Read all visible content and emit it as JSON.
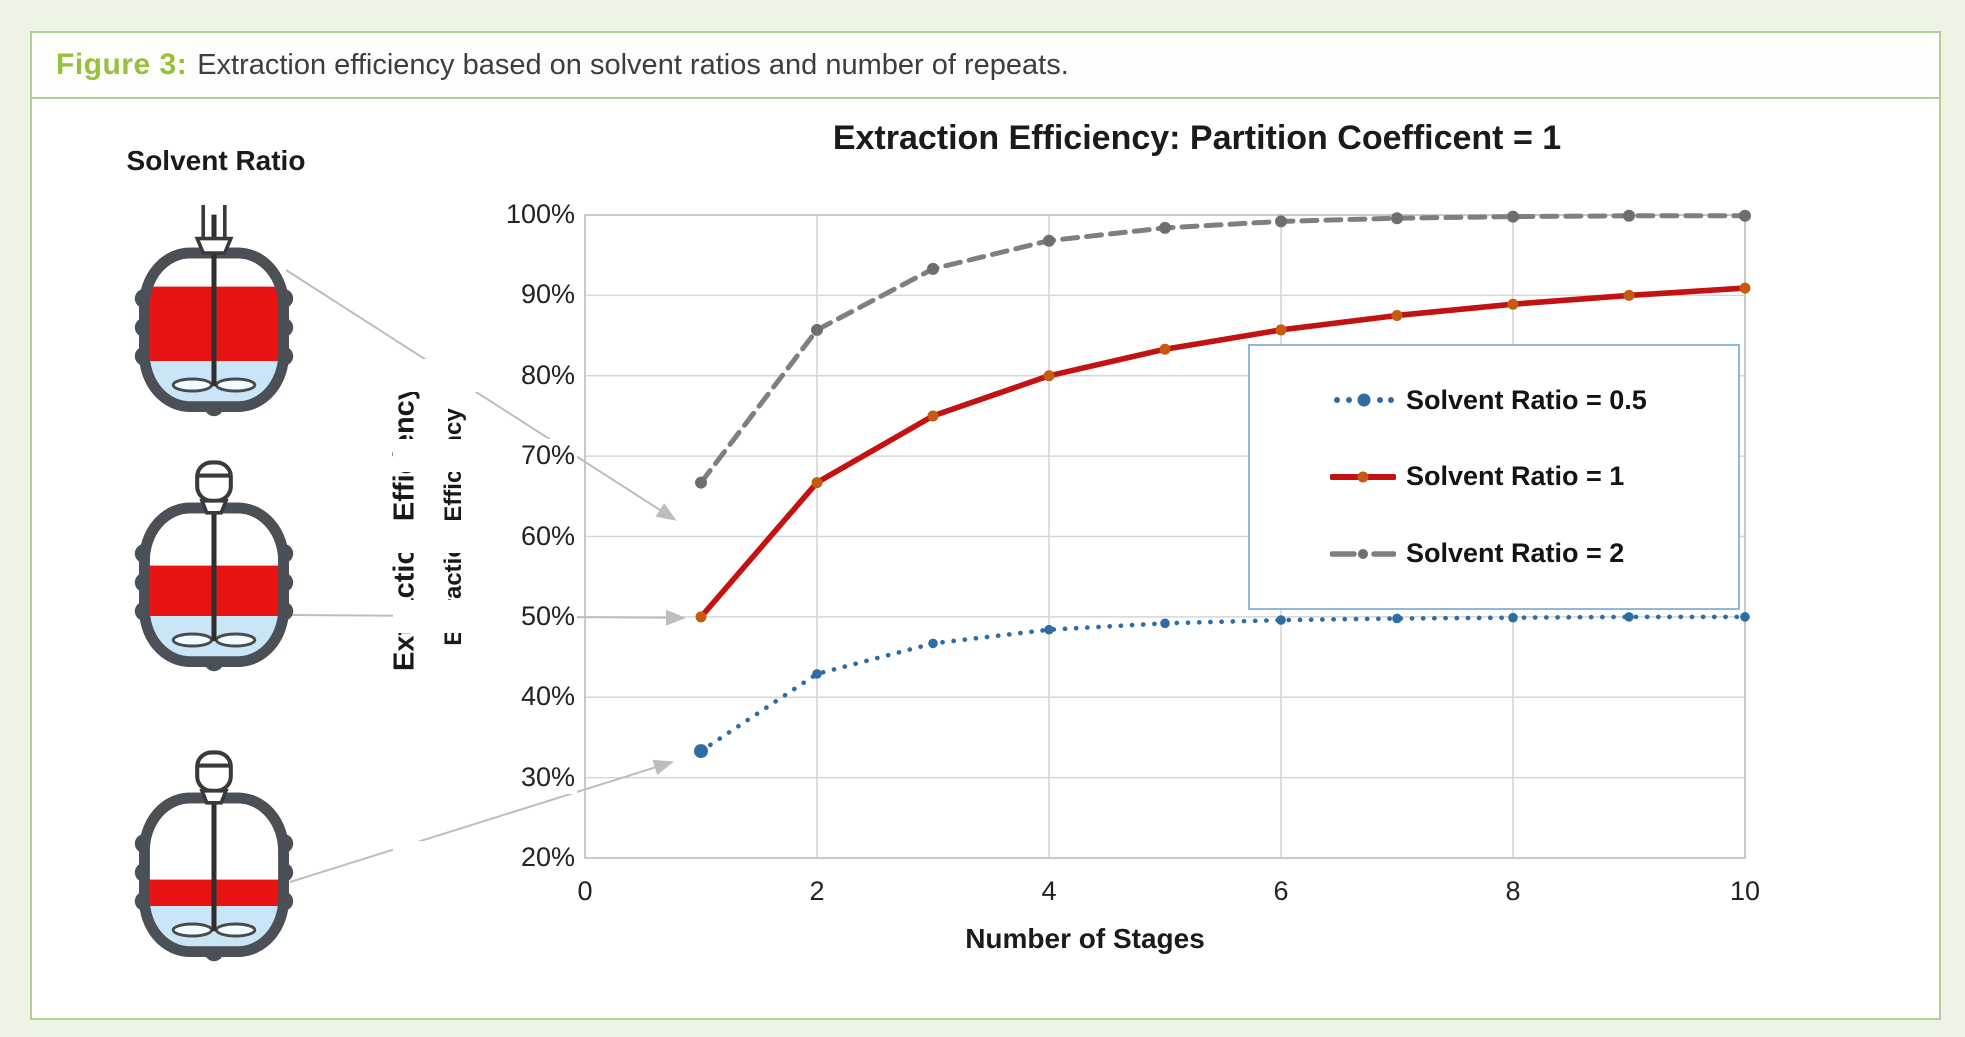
{
  "figure": {
    "label": "Figure 3:",
    "caption": "Extraction efficiency based on solvent ratios and number of repeats."
  },
  "diagram": {
    "heading": "Solvent Ratio",
    "vessels": [
      {
        "solvent_ratio": 2,
        "links_to_series": "Solvent Ratio = 2"
      },
      {
        "solvent_ratio": 1,
        "links_to_series": "Solvent Ratio = 1"
      },
      {
        "solvent_ratio": 0.5,
        "links_to_series": "Solvent Ratio = 0.5"
      }
    ]
  },
  "chart_data": {
    "type": "line",
    "title": "Extraction Efficiency: Partition Coefficent = 1",
    "xlabel": "Number of Stages",
    "ylabel": "Extraction Efficiency",
    "ylabel_secondary": "Extraction Efficiency",
    "xlim": [
      0,
      10
    ],
    "ylim": [
      20,
      100
    ],
    "grid": true,
    "legend_position": "middle-right",
    "x_ticks": [
      "0",
      "2",
      "4",
      "6",
      "8",
      "10"
    ],
    "x_tick_values": [
      0,
      2,
      4,
      6,
      8,
      10
    ],
    "y_ticks": [
      "100%",
      "90%",
      "80%",
      "70%",
      "60%",
      "50%",
      "40%",
      "30%",
      "20%"
    ],
    "y_tick_values": [
      100,
      90,
      80,
      70,
      60,
      50,
      40,
      30,
      20
    ],
    "x": [
      1,
      2,
      3,
      4,
      5,
      6,
      7,
      8,
      9,
      10
    ],
    "series": [
      {
        "name": "Solvent Ratio = 0.5",
        "style": "dotted",
        "color": "#2e6da4",
        "marker_color": "#2e6da4",
        "values": [
          33.3,
          42.9,
          46.7,
          48.4,
          49.2,
          49.6,
          49.8,
          49.9,
          50.0,
          50.0
        ]
      },
      {
        "name": "Solvent Ratio = 1",
        "style": "solid",
        "color": "#c31212",
        "marker_color": "#c55a11",
        "values": [
          50.0,
          66.7,
          75.0,
          80.0,
          83.3,
          85.7,
          87.5,
          88.9,
          90.0,
          90.9
        ]
      },
      {
        "name": "Solvent Ratio = 2",
        "style": "dashed",
        "color": "#7f7f7f",
        "marker_color": "#6e6e6e",
        "values": [
          66.7,
          85.7,
          93.3,
          96.8,
          98.4,
          99.2,
          99.6,
          99.8,
          99.9,
          99.9
        ]
      }
    ],
    "annotations": {
      "arrows": [
        {
          "from_vessel": 1,
          "points_to": {
            "stage": 1,
            "efficiency": 66.7
          }
        },
        {
          "from_vessel": 2,
          "points_to": {
            "stage": 1,
            "efficiency": 50.0
          }
        },
        {
          "from_vessel": 3,
          "points_to": {
            "stage": 1,
            "efficiency": 33.3
          }
        }
      ]
    }
  },
  "colors": {
    "page_background": "#edf3e5",
    "figure_border": "#b2cf96",
    "caption_accent": "#97c13c",
    "caption_text": "#3d3d3d",
    "gridline": "#d6d6d6",
    "plot_border": "#c6c6c6",
    "legend_border": "#8fb8dc",
    "arrow": "#bdbdbd",
    "vessel_outline": "#4b5056",
    "vessel_solvent_red": "#e81212",
    "vessel_feed_blue": "#c8e6f8"
  }
}
